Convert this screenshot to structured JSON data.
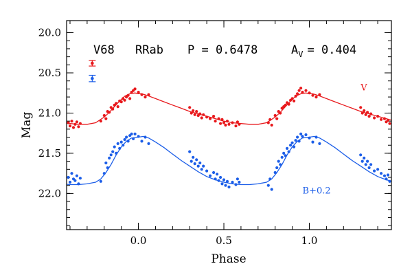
{
  "chart_data": {
    "type": "scatter",
    "header": {
      "star": "V68",
      "class": "RRab",
      "period_text": "P = 0.6478",
      "amp_base": "A",
      "amp_sub": "V",
      "amp_value": "= 0.404"
    },
    "xlabel": "Phase",
    "ylabel": "Mag",
    "xlim": [
      -0.42,
      1.48
    ],
    "ylim": [
      22.45,
      19.85
    ],
    "y_inverted": true,
    "xticks": [
      {
        "value": 0.0,
        "label": "0.0"
      },
      {
        "value": 0.5,
        "label": "0.5"
      },
      {
        "value": 1.0,
        "label": "1.0"
      }
    ],
    "yticks": [
      {
        "value": 20.0,
        "label": "20.0"
      },
      {
        "value": 20.5,
        "label": "20.5"
      },
      {
        "value": 21.0,
        "label": "21.0"
      },
      {
        "value": 21.5,
        "label": "21.5"
      },
      {
        "value": 22.0,
        "label": "22.0"
      }
    ],
    "grid": false,
    "series": [
      {
        "name": "V",
        "color": "#e8191c",
        "label_phase": 1.3,
        "label_mag": 20.72,
        "errorbar": {
          "phase": -0.27,
          "mag": 20.38,
          "err": 0.035
        },
        "template": [
          [
            0.0,
            20.76
          ],
          [
            0.02,
            20.76
          ],
          [
            0.05,
            20.78
          ],
          [
            0.1,
            20.82
          ],
          [
            0.15,
            20.86
          ],
          [
            0.2,
            20.9
          ],
          [
            0.25,
            20.94
          ],
          [
            0.3,
            20.98
          ],
          [
            0.35,
            21.01
          ],
          [
            0.4,
            21.04
          ],
          [
            0.45,
            21.07
          ],
          [
            0.5,
            21.1
          ],
          [
            0.55,
            21.12
          ],
          [
            0.6,
            21.13
          ],
          [
            0.65,
            21.14
          ],
          [
            0.7,
            21.14
          ],
          [
            0.75,
            21.12
          ],
          [
            0.8,
            21.05
          ],
          [
            0.83,
            20.99
          ],
          [
            0.86,
            20.92
          ],
          [
            0.89,
            20.85
          ],
          [
            0.92,
            20.79
          ],
          [
            0.95,
            20.76
          ],
          [
            0.98,
            20.75
          ],
          [
            1.0,
            20.76
          ]
        ],
        "points": [
          [
            -0.41,
            21.12
          ],
          [
            -0.4,
            21.16
          ],
          [
            -0.39,
            21.1
          ],
          [
            -0.38,
            21.18
          ],
          [
            -0.37,
            21.14
          ],
          [
            -0.36,
            21.11
          ],
          [
            -0.35,
            21.17
          ],
          [
            -0.34,
            21.13
          ],
          [
            -0.22,
            21.1
          ],
          [
            -0.2,
            21.03
          ],
          [
            -0.19,
            21.07
          ],
          [
            -0.18,
            20.98
          ],
          [
            -0.17,
            20.99
          ],
          [
            -0.16,
            20.93
          ],
          [
            -0.15,
            20.95
          ],
          [
            -0.14,
            20.9
          ],
          [
            -0.13,
            20.88
          ],
          [
            -0.12,
            20.92
          ],
          [
            -0.11,
            20.85
          ],
          [
            -0.1,
            20.86
          ],
          [
            -0.09,
            20.82
          ],
          [
            -0.08,
            20.84
          ],
          [
            -0.07,
            20.8
          ],
          [
            -0.06,
            20.78
          ],
          [
            -0.05,
            20.82
          ],
          [
            -0.04,
            20.74
          ],
          [
            -0.03,
            20.72
          ],
          [
            -0.02,
            20.7
          ],
          [
            0.0,
            20.74
          ],
          [
            0.02,
            20.77
          ],
          [
            0.04,
            20.8
          ],
          [
            0.06,
            20.77
          ],
          [
            0.3,
            20.93
          ],
          [
            0.31,
            21.0
          ],
          [
            0.32,
            20.97
          ],
          [
            0.33,
            21.02
          ],
          [
            0.34,
            20.98
          ],
          [
            0.35,
            21.03
          ],
          [
            0.36,
            21.01
          ],
          [
            0.37,
            21.06
          ],
          [
            0.38,
            21.02
          ],
          [
            0.4,
            21.05
          ],
          [
            0.42,
            21.07
          ],
          [
            0.44,
            21.04
          ],
          [
            0.45,
            21.1
          ],
          [
            0.47,
            21.07
          ],
          [
            0.48,
            21.13
          ],
          [
            0.49,
            21.08
          ],
          [
            0.5,
            21.12
          ],
          [
            0.51,
            21.15
          ],
          [
            0.52,
            21.1
          ],
          [
            0.53,
            21.14
          ],
          [
            0.55,
            21.12
          ],
          [
            0.57,
            21.16
          ],
          [
            0.58,
            21.11
          ],
          [
            0.59,
            21.14
          ],
          [
            0.76,
            21.12
          ],
          [
            0.77,
            21.08
          ],
          [
            0.78,
            21.15
          ],
          [
            0.8,
            21.03
          ],
          [
            0.81,
            21.07
          ],
          [
            0.82,
            20.98
          ],
          [
            0.83,
            21.0
          ],
          [
            0.84,
            20.94
          ],
          [
            0.85,
            20.92
          ],
          [
            0.86,
            20.9
          ],
          [
            0.87,
            20.87
          ],
          [
            0.88,
            20.89
          ],
          [
            0.89,
            20.84
          ],
          [
            0.9,
            20.82
          ],
          [
            0.91,
            20.85
          ],
          [
            0.92,
            20.79
          ],
          [
            0.93,
            20.76
          ],
          [
            0.94,
            20.72
          ],
          [
            0.95,
            20.69
          ],
          [
            0.96,
            20.74
          ],
          [
            0.98,
            20.72
          ],
          [
            1.0,
            20.75
          ],
          [
            1.02,
            20.78
          ],
          [
            1.04,
            20.8
          ],
          [
            1.06,
            20.77
          ],
          [
            1.3,
            20.93
          ],
          [
            1.31,
            21.0
          ],
          [
            1.32,
            20.97
          ],
          [
            1.33,
            21.02
          ],
          [
            1.34,
            20.99
          ],
          [
            1.35,
            21.04
          ],
          [
            1.36,
            21.01
          ],
          [
            1.38,
            21.06
          ],
          [
            1.4,
            21.04
          ],
          [
            1.42,
            21.08
          ],
          [
            1.44,
            21.07
          ],
          [
            1.45,
            21.11
          ],
          [
            1.46,
            21.09
          ],
          [
            1.47,
            21.13
          ]
        ]
      },
      {
        "name": "B+0.2",
        "color": "#1c5ee8",
        "label_phase": 0.96,
        "label_mag": 22.0,
        "errorbar": {
          "phase": -0.27,
          "mag": 20.57,
          "err": 0.04
        },
        "template": [
          [
            0.0,
            21.3
          ],
          [
            0.03,
            21.29
          ],
          [
            0.06,
            21.31
          ],
          [
            0.1,
            21.36
          ],
          [
            0.15,
            21.43
          ],
          [
            0.2,
            21.51
          ],
          [
            0.25,
            21.59
          ],
          [
            0.3,
            21.66
          ],
          [
            0.35,
            21.73
          ],
          [
            0.4,
            21.79
          ],
          [
            0.45,
            21.83
          ],
          [
            0.5,
            21.86
          ],
          [
            0.55,
            21.88
          ],
          [
            0.6,
            21.89
          ],
          [
            0.65,
            21.89
          ],
          [
            0.7,
            21.88
          ],
          [
            0.75,
            21.86
          ],
          [
            0.78,
            21.82
          ],
          [
            0.81,
            21.74
          ],
          [
            0.84,
            21.64
          ],
          [
            0.87,
            21.52
          ],
          [
            0.9,
            21.42
          ],
          [
            0.93,
            21.35
          ],
          [
            0.96,
            21.31
          ],
          [
            1.0,
            21.3
          ]
        ],
        "points": [
          [
            -0.41,
            21.8
          ],
          [
            -0.4,
            21.86
          ],
          [
            -0.39,
            21.75
          ],
          [
            -0.38,
            21.82
          ],
          [
            -0.37,
            21.84
          ],
          [
            -0.36,
            21.78
          ],
          [
            -0.35,
            21.88
          ],
          [
            -0.34,
            21.81
          ],
          [
            -0.22,
            21.85
          ],
          [
            -0.2,
            21.75
          ],
          [
            -0.19,
            21.62
          ],
          [
            -0.18,
            21.68
          ],
          [
            -0.17,
            21.56
          ],
          [
            -0.16,
            21.52
          ],
          [
            -0.15,
            21.48
          ],
          [
            -0.14,
            21.42
          ],
          [
            -0.13,
            21.5
          ],
          [
            -0.12,
            21.38
          ],
          [
            -0.11,
            21.44
          ],
          [
            -0.1,
            21.36
          ],
          [
            -0.09,
            21.4
          ],
          [
            -0.08,
            21.33
          ],
          [
            -0.07,
            21.3
          ],
          [
            -0.06,
            21.35
          ],
          [
            -0.05,
            21.28
          ],
          [
            -0.04,
            21.26
          ],
          [
            -0.03,
            21.32
          ],
          [
            -0.02,
            21.26
          ],
          [
            0.0,
            21.29
          ],
          [
            0.02,
            21.35
          ],
          [
            0.04,
            21.3
          ],
          [
            0.06,
            21.38
          ],
          [
            0.3,
            21.48
          ],
          [
            0.31,
            21.6
          ],
          [
            0.32,
            21.55
          ],
          [
            0.33,
            21.63
          ],
          [
            0.34,
            21.58
          ],
          [
            0.35,
            21.66
          ],
          [
            0.36,
            21.62
          ],
          [
            0.37,
            21.7
          ],
          [
            0.38,
            21.66
          ],
          [
            0.4,
            21.72
          ],
          [
            0.42,
            21.78
          ],
          [
            0.44,
            21.74
          ],
          [
            0.45,
            21.82
          ],
          [
            0.46,
            21.76
          ],
          [
            0.47,
            21.84
          ],
          [
            0.48,
            21.8
          ],
          [
            0.49,
            21.88
          ],
          [
            0.5,
            21.83
          ],
          [
            0.51,
            21.9
          ],
          [
            0.52,
            21.85
          ],
          [
            0.53,
            21.92
          ],
          [
            0.55,
            21.86
          ],
          [
            0.57,
            21.89
          ],
          [
            0.58,
            21.82
          ],
          [
            0.59,
            21.86
          ],
          [
            0.76,
            21.9
          ],
          [
            0.77,
            21.82
          ],
          [
            0.78,
            21.95
          ],
          [
            0.8,
            21.74
          ],
          [
            0.81,
            21.68
          ],
          [
            0.82,
            21.6
          ],
          [
            0.83,
            21.64
          ],
          [
            0.84,
            21.55
          ],
          [
            0.85,
            21.5
          ],
          [
            0.86,
            21.53
          ],
          [
            0.87,
            21.44
          ],
          [
            0.88,
            21.48
          ],
          [
            0.89,
            21.4
          ],
          [
            0.9,
            21.37
          ],
          [
            0.91,
            21.42
          ],
          [
            0.92,
            21.34
          ],
          [
            0.93,
            21.3
          ],
          [
            0.94,
            21.35
          ],
          [
            0.95,
            21.26
          ],
          [
            0.96,
            21.29
          ],
          [
            0.98,
            21.27
          ],
          [
            1.0,
            21.31
          ],
          [
            1.02,
            21.36
          ],
          [
            1.04,
            21.3
          ],
          [
            1.06,
            21.38
          ],
          [
            1.3,
            21.52
          ],
          [
            1.31,
            21.6
          ],
          [
            1.32,
            21.56
          ],
          [
            1.33,
            21.64
          ],
          [
            1.34,
            21.6
          ],
          [
            1.35,
            21.68
          ],
          [
            1.36,
            21.64
          ],
          [
            1.38,
            21.72
          ],
          [
            1.4,
            21.7
          ],
          [
            1.42,
            21.75
          ],
          [
            1.44,
            21.78
          ],
          [
            1.45,
            21.82
          ],
          [
            1.46,
            21.77
          ],
          [
            1.47,
            21.85
          ]
        ]
      }
    ]
  }
}
